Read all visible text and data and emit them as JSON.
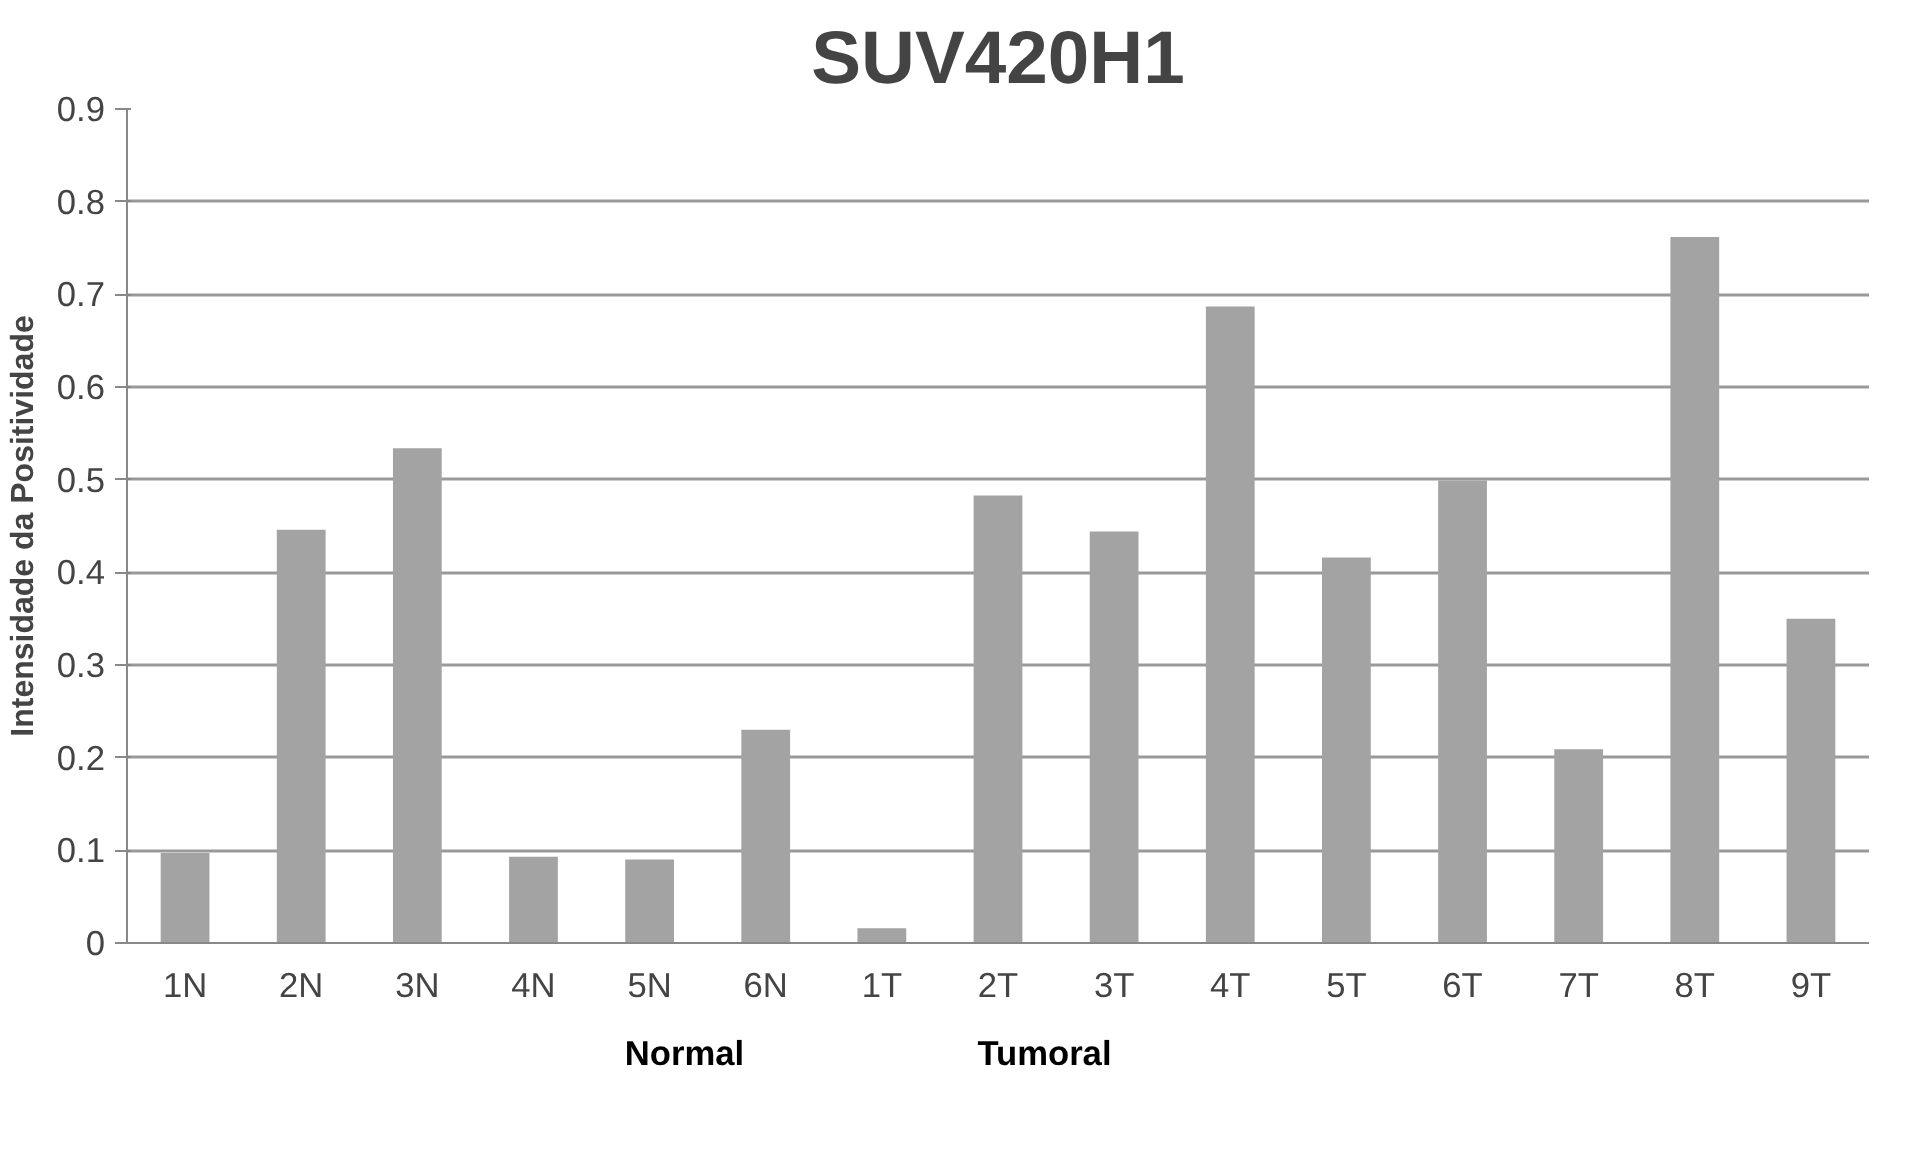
{
  "chart_data": {
    "type": "bar",
    "title": "SUV420H1",
    "ylabel": "Intensidade da Positividade",
    "categories": [
      "1N",
      "2N",
      "3N",
      "4N",
      "5N",
      "6N",
      "1T",
      "2T",
      "3T",
      "4T",
      "5T",
      "6T",
      "7T",
      "8T",
      "9T"
    ],
    "values": [
      0.097,
      0.446,
      0.534,
      0.093,
      0.09,
      0.23,
      0.016,
      0.483,
      0.444,
      0.687,
      0.416,
      0.499,
      0.209,
      0.762,
      0.35
    ],
    "color": "#a3a3a3",
    "ylim": [
      0,
      0.9
    ],
    "yticks": [
      0,
      0.1,
      0.2,
      0.3,
      0.4,
      0.5,
      0.6,
      0.7,
      0.8,
      0.9
    ],
    "grid": "y",
    "annotations": [
      "Normal",
      "Tumoral"
    ]
  }
}
